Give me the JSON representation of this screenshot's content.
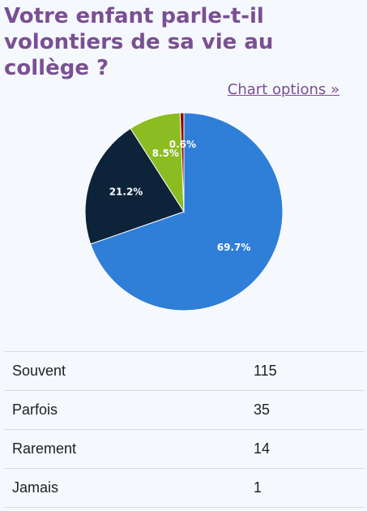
{
  "title": "Votre enfant parle-t-il volontiers de sa vie au collège ?",
  "chart_options_label": "Chart options »",
  "chart_data": {
    "type": "pie",
    "categories": [
      "Souvent",
      "Parfois",
      "Rarement",
      "Jamais"
    ],
    "values": [
      115,
      35,
      14,
      1
    ],
    "labels": [
      "69.7%",
      "21.2%",
      "8.5%",
      "0.6%"
    ],
    "colors": [
      "#2f7ed8",
      "#0d233a",
      "#8bbc21",
      "#910000"
    ]
  },
  "table": {
    "rows": [
      {
        "label": "Souvent",
        "count": "115"
      },
      {
        "label": "Parfois",
        "count": "35"
      },
      {
        "label": "Rarement",
        "count": "14"
      },
      {
        "label": "Jamais",
        "count": "1"
      }
    ]
  }
}
